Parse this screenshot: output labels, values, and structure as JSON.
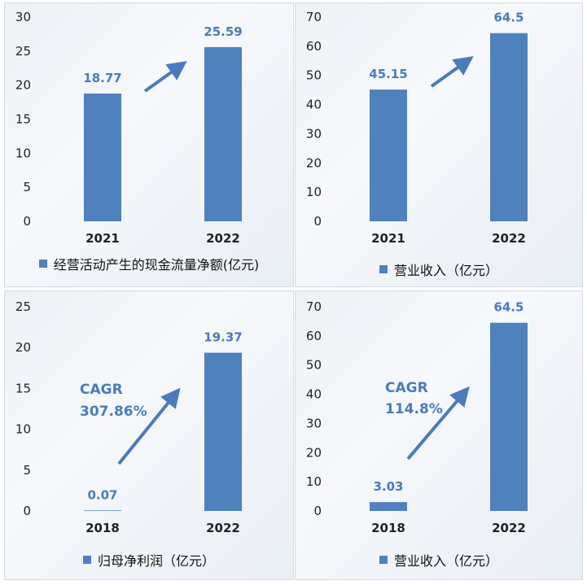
{
  "colors": {
    "bar": "#4f81bd",
    "label": "#4a7bbb",
    "arrow": "#4a7bbb"
  },
  "chart_data": [
    {
      "type": "bar",
      "categories": [
        "2021",
        "2022"
      ],
      "series": [
        {
          "name": "经营活动产生的现金流量净额(亿元)",
          "values": [
            18.77,
            25.59
          ]
        }
      ],
      "data_labels": [
        "18.77",
        "25.59"
      ],
      "ylim": [
        0,
        30
      ],
      "yticks": [
        0,
        5,
        10,
        15,
        20,
        25,
        30
      ],
      "annotation": [
        "",
        ""
      ],
      "legend_position": "bottom"
    },
    {
      "type": "bar",
      "categories": [
        "2021",
        "2022"
      ],
      "series": [
        {
          "name": "营业收入（亿元）",
          "values": [
            45.15,
            64.5
          ]
        }
      ],
      "data_labels": [
        "45.15",
        "64.5"
      ],
      "ylim": [
        0,
        70
      ],
      "yticks": [
        0,
        10,
        20,
        30,
        40,
        50,
        60,
        70
      ],
      "annotation": [
        "",
        ""
      ],
      "legend_position": "bottom"
    },
    {
      "type": "bar",
      "categories": [
        "2018",
        "2022"
      ],
      "series": [
        {
          "name": "归母净利润（亿元）",
          "values": [
            0.07,
            19.37
          ]
        }
      ],
      "data_labels": [
        "0.07",
        "19.37"
      ],
      "ylim": [
        0,
        25
      ],
      "yticks": [
        0,
        5,
        10,
        15,
        20,
        25
      ],
      "annotation": [
        "CAGR",
        "307.86%"
      ],
      "legend_position": "bottom"
    },
    {
      "type": "bar",
      "categories": [
        "2018",
        "2022"
      ],
      "series": [
        {
          "name": "营业收入（亿元）",
          "values": [
            3.03,
            64.5
          ]
        }
      ],
      "data_labels": [
        "3.03",
        "64.5"
      ],
      "ylim": [
        0,
        70
      ],
      "yticks": [
        0,
        10,
        20,
        30,
        40,
        50,
        60,
        70
      ],
      "annotation": [
        "CAGR",
        "114.8%"
      ],
      "legend_position": "bottom"
    }
  ]
}
